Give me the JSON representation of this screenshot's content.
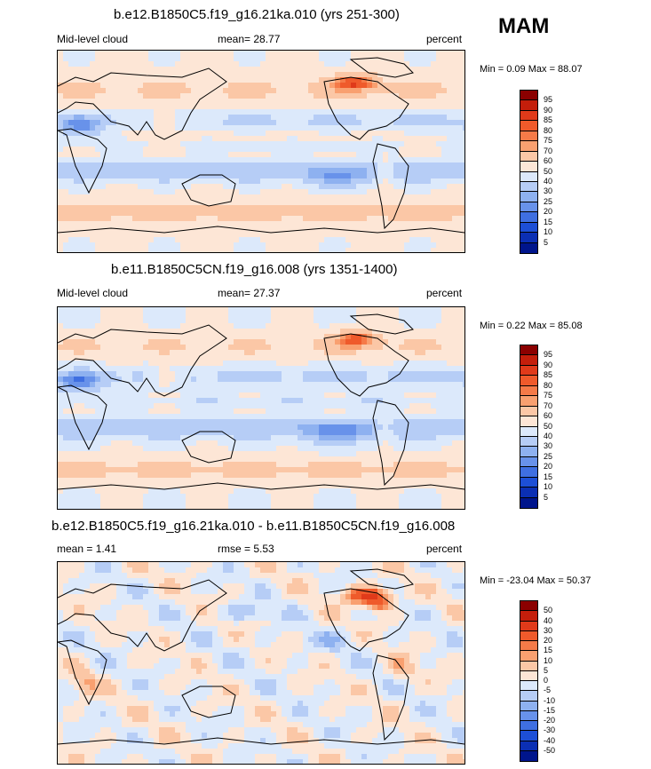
{
  "season": "MAM",
  "panels": [
    {
      "title": "b.e12.B1850C5.f19_g16.21ka.010 (yrs 251-300)",
      "left": "Mid-level cloud",
      "center": "mean=  28.77",
      "right": "percent",
      "minmax": "Min =   0.09 Max =  88.07",
      "levels": [
        "95",
        "90",
        "85",
        "80",
        "75",
        "70",
        "60",
        "50",
        "40",
        "30",
        "25",
        "20",
        "15",
        "10",
        "5"
      ],
      "colors": [
        "#8b0000",
        "#c41e0b",
        "#e03a1a",
        "#ef5a2b",
        "#f57a48",
        "#f9a070",
        "#fbc7a6",
        "#fde6d6",
        "#dce9fb",
        "#b6cdf6",
        "#8eb1f0",
        "#6892ea",
        "#3f6fe1",
        "#1d4fd6",
        "#0b2fb4",
        "#00158c"
      ],
      "field": "A"
    },
    {
      "title": "b.e11.B1850C5CN.f19_g16.008 (yrs 1351-1400)",
      "left": "Mid-level cloud",
      "center": "mean=  27.37",
      "right": "percent",
      "minmax": "Min =   0.22 Max =  85.08",
      "levels": [
        "95",
        "90",
        "85",
        "80",
        "75",
        "70",
        "60",
        "50",
        "40",
        "30",
        "25",
        "20",
        "15",
        "10",
        "5"
      ],
      "colors": [
        "#8b0000",
        "#c41e0b",
        "#e03a1a",
        "#ef5a2b",
        "#f57a48",
        "#f9a070",
        "#fbc7a6",
        "#fde6d6",
        "#dce9fb",
        "#b6cdf6",
        "#8eb1f0",
        "#6892ea",
        "#3f6fe1",
        "#1d4fd6",
        "#0b2fb4",
        "#00158c"
      ],
      "field": "B"
    },
    {
      "title": "b.e12.B1850C5.f19_g16.21ka.010 - b.e11.B1850C5CN.f19_g16.008",
      "left": "mean =   1.41",
      "center": "rmse =   5.53",
      "right": "percent",
      "minmax": "Min = -23.04 Max =  50.37",
      "levels": [
        "50",
        "40",
        "30",
        "20",
        "15",
        "10",
        "5",
        "0",
        "-5",
        "-10",
        "-15",
        "-20",
        "-30",
        "-40",
        "-50"
      ],
      "colors": [
        "#8b0000",
        "#c41e0b",
        "#e03a1a",
        "#ef5a2b",
        "#f57a48",
        "#f9a070",
        "#fbc7a6",
        "#fde6d6",
        "#dce9fb",
        "#b6cdf6",
        "#8eb1f0",
        "#6892ea",
        "#3f6fe1",
        "#1d4fd6",
        "#0b2fb4",
        "#00158c"
      ],
      "field": "D"
    }
  ]
}
